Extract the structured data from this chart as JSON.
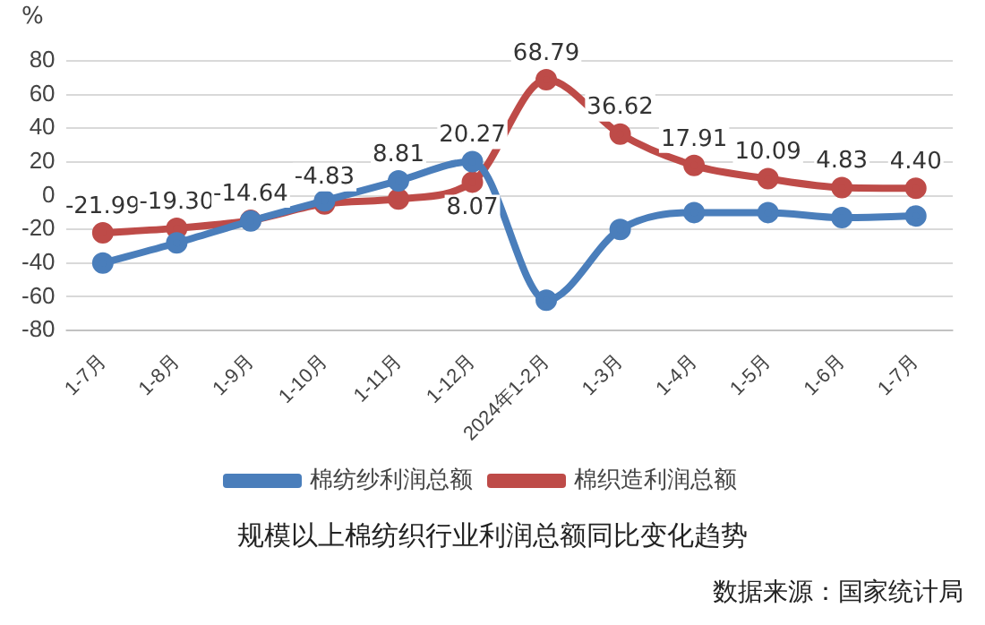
{
  "chart_data": {
    "type": "line",
    "title": "规模以上棉纺织行业利润总额同比变化趋势",
    "ylabel": "%",
    "annotations": [
      "数据来源：国家统计局"
    ],
    "categories": [
      "1-7月",
      "1-8月",
      "1-9月",
      "1-10月",
      "1-11月",
      "1-12月",
      "2024年1-2月",
      "1-3月",
      "1-4月",
      "1-5月",
      "1-6月",
      "1-7月"
    ],
    "series": [
      {
        "name": "棉纺纱利润总额",
        "color": "#4a7ebb",
        "values": [
          -40,
          -28,
          -15,
          -3,
          8.81,
          20.27,
          -62,
          -20,
          -10,
          -10,
          -13,
          -12
        ],
        "value_labels": [
          null,
          null,
          null,
          null,
          "8.81",
          "20.27",
          null,
          null,
          null,
          null,
          null,
          null
        ]
      },
      {
        "name": "棉织造利润总额",
        "color": "#be4b48",
        "values": [
          -21.99,
          -19.3,
          -14.64,
          -4.83,
          -2,
          8.07,
          68.79,
          36.62,
          17.91,
          10.09,
          4.83,
          4.4
        ],
        "value_labels": [
          "-21.99",
          "-19.30",
          "-14.64",
          "-4.83",
          null,
          "8.07",
          "68.79",
          "36.62",
          "17.91",
          "10.09",
          "4.83",
          "4.40"
        ]
      }
    ],
    "ylim": [
      -80,
      80
    ],
    "yticks": [
      -80,
      -60,
      -40,
      -20,
      0,
      20,
      40,
      60,
      80
    ],
    "grid": "y",
    "legend": "bottom",
    "marker": "circle",
    "line_style": "solid"
  }
}
